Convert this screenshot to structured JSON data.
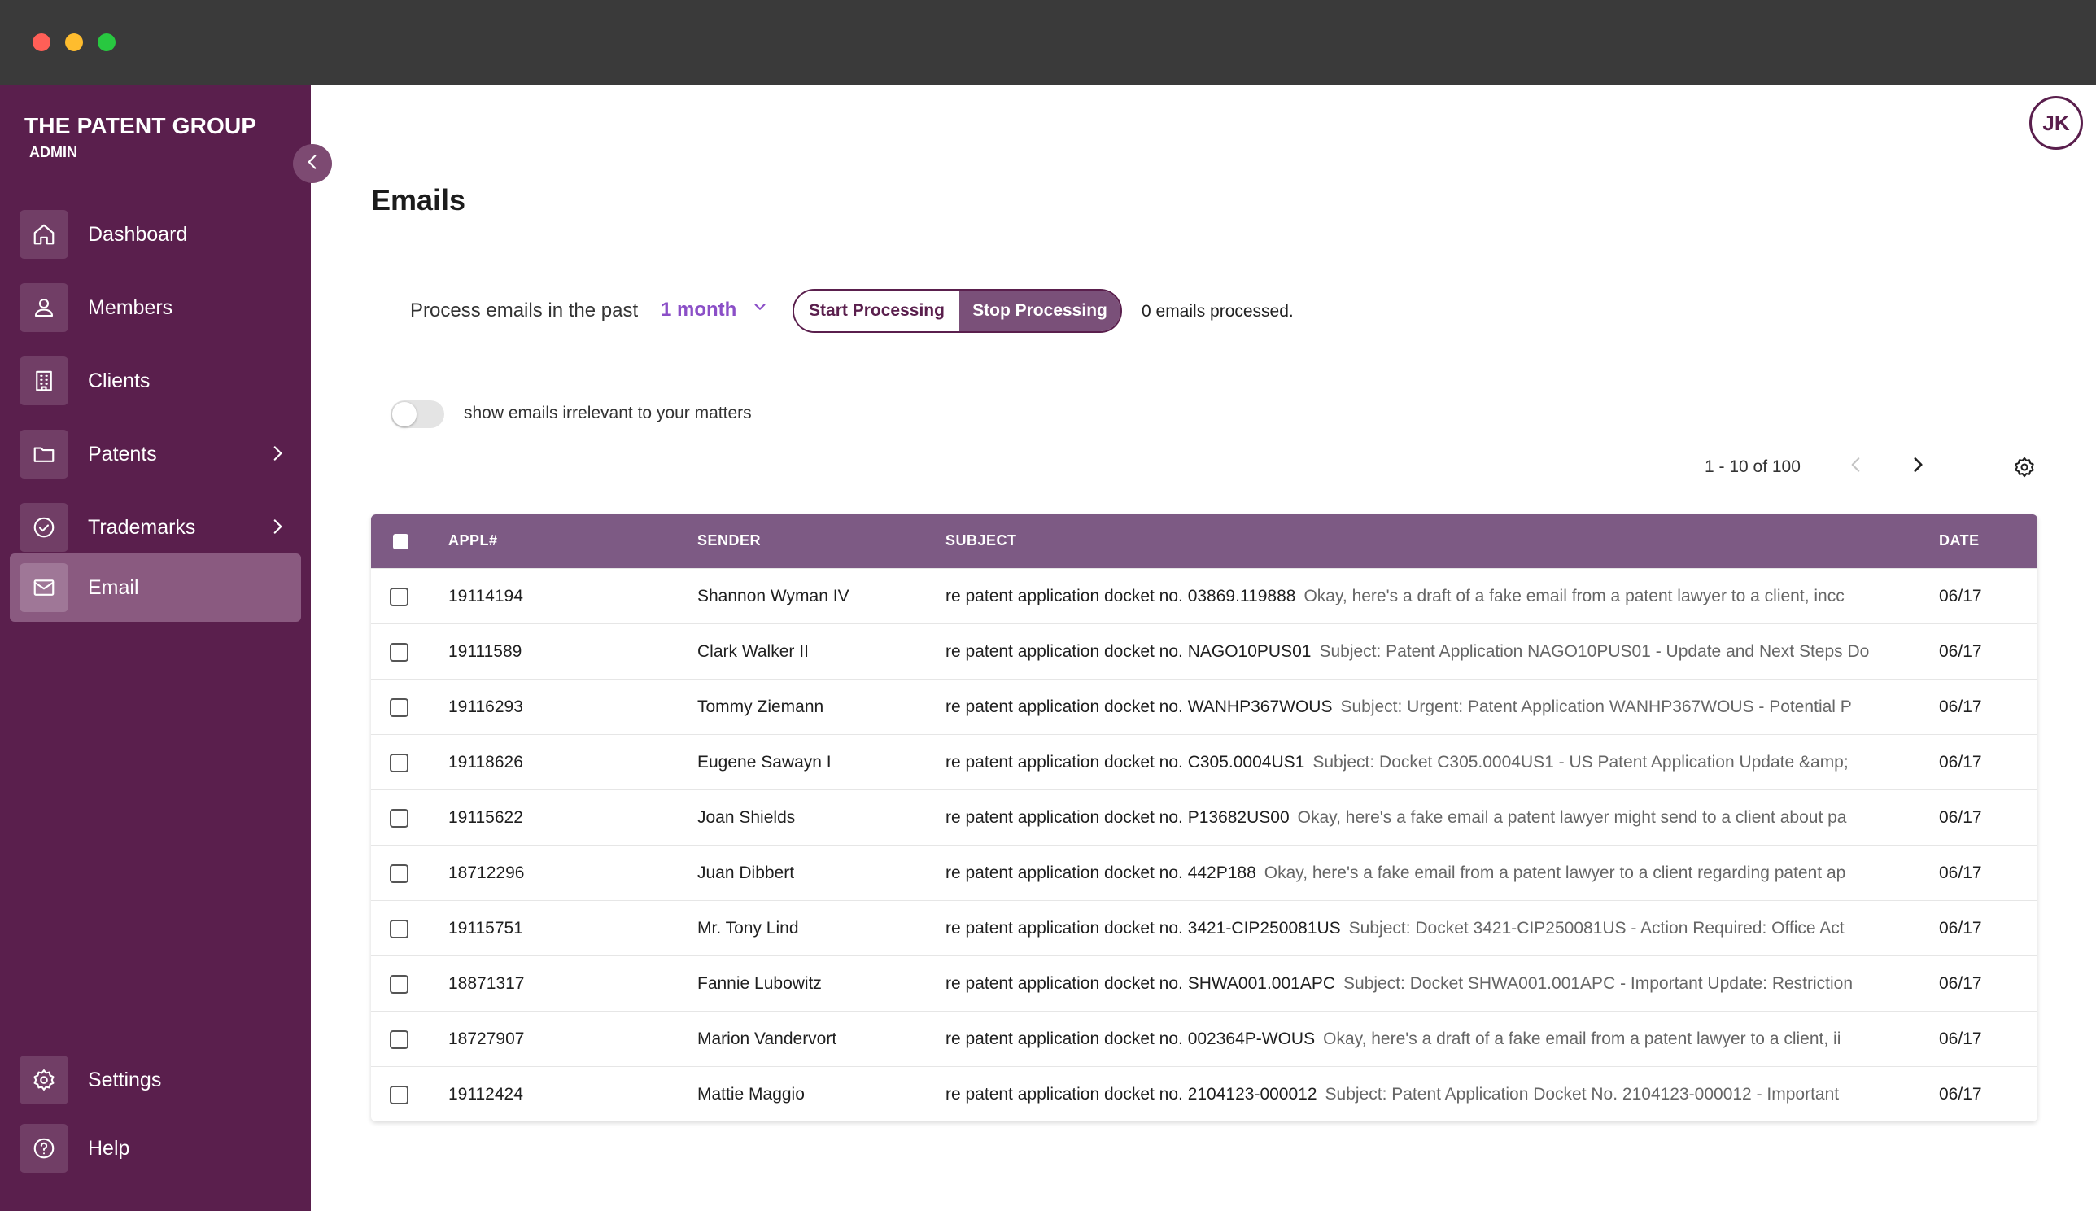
{
  "sidebar": {
    "brand": "THE PATENT GROUP",
    "role": "ADMIN",
    "items": [
      {
        "label": "Dashboard",
        "icon": "home-icon"
      },
      {
        "label": "Members",
        "icon": "users-icon"
      },
      {
        "label": "Clients",
        "icon": "building-icon"
      },
      {
        "label": "Patents",
        "icon": "folder-icon"
      },
      {
        "label": "Trademarks",
        "icon": "check-circle-icon"
      },
      {
        "label": "Email",
        "icon": "mail-icon"
      }
    ],
    "bottom_items": [
      {
        "label": "Settings",
        "icon": "gear-icon"
      },
      {
        "label": "Help",
        "icon": "help-circle-icon"
      }
    ],
    "active": "Email"
  },
  "header": {
    "avatar_initials": "JK"
  },
  "main": {
    "title": "Emails",
    "process_label": "Process emails in the past",
    "period_value": "1 month",
    "start_label": "Start Processing",
    "stop_label": "Stop Processing",
    "processed_status": "0 emails processed.",
    "toggle_label": "show emails irrelevant to your matters",
    "toggle_on": false,
    "pager": "1 - 10 of 100"
  },
  "table": {
    "columns": [
      "APPL#",
      "SENDER",
      "SUBJECT",
      "DATE"
    ],
    "rows": [
      {
        "appl": "19114194",
        "sender": "Shannon Wyman IV",
        "subject": "re patent application docket no. 03869.119888",
        "preview": "Okay, here's a draft of a fake email from a patent lawyer to a client, incc",
        "date": "06/17"
      },
      {
        "appl": "19111589",
        "sender": "Clark Walker II",
        "subject": "re patent application docket no. NAGO10PUS01",
        "preview": "Subject: Patent Application NAGO10PUS01 - Update and Next Steps Do",
        "date": "06/17"
      },
      {
        "appl": "19116293",
        "sender": "Tommy Ziemann",
        "subject": "re patent application docket no. WANHP367WOUS",
        "preview": "Subject: Urgent: Patent Application WANHP367WOUS - Potential P",
        "date": "06/17"
      },
      {
        "appl": "19118626",
        "sender": "Eugene Sawayn I",
        "subject": "re patent application docket no. C305.0004US1",
        "preview": "Subject: Docket C305.0004US1 - US Patent Application Update &amp;",
        "date": "06/17"
      },
      {
        "appl": "19115622",
        "sender": "Joan Shields",
        "subject": "re patent application docket no. P13682US00",
        "preview": "Okay, here's a fake email a patent lawyer might send to a client about pa",
        "date": "06/17"
      },
      {
        "appl": "18712296",
        "sender": "Juan Dibbert",
        "subject": "re patent application docket no. 442P188",
        "preview": "Okay, here's a fake email from a patent lawyer to a client regarding patent ap",
        "date": "06/17"
      },
      {
        "appl": "19115751",
        "sender": "Mr. Tony Lind",
        "subject": "re patent application docket no. 3421-CIP250081US",
        "preview": "Subject: Docket 3421-CIP250081US - Action Required: Office Act",
        "date": "06/17"
      },
      {
        "appl": "18871317",
        "sender": "Fannie Lubowitz",
        "subject": "re patent application docket no. SHWA001.001APC",
        "preview": "Subject: Docket SHWA001.001APC - Important Update: Restriction",
        "date": "06/17"
      },
      {
        "appl": "18727907",
        "sender": "Marion Vandervort",
        "subject": "re patent application docket no. 002364P-WOUS",
        "preview": "Okay, here's a draft of a fake email from a patent lawyer to a client, ii",
        "date": "06/17"
      },
      {
        "appl": "19112424",
        "sender": "Mattie Maggio",
        "subject": "re patent application docket no. 2104123-000012",
        "preview": "Subject: Patent Application Docket No. 2104123-000012 - Important",
        "date": "06/17"
      }
    ]
  },
  "colors": {
    "sidebar_bg": "#5a1f4d",
    "accent": "#8b4fc7",
    "table_header": "#7d5a84",
    "button_active": "#7a5079"
  }
}
